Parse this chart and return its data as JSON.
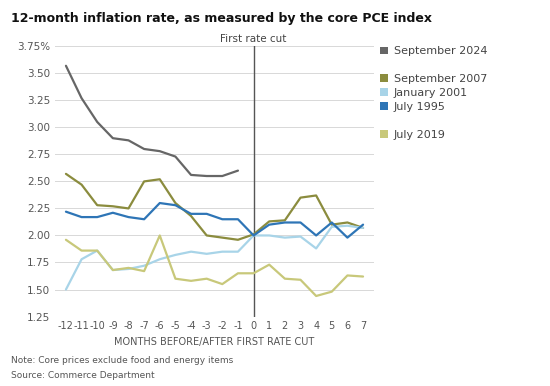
{
  "title": "12-month inflation rate, as measured by the core PCE index",
  "xlabel": "MONTHS BEFORE/AFTER FIRST RATE CUT",
  "vline_label": "First rate cut",
  "note": "Note: Core prices exclude food and energy items",
  "source": "Source: Commerce Department",
  "series": {
    "September 2024": {
      "color": "#666666",
      "x": [
        -12,
        -11,
        -10,
        -9,
        -8,
        -7,
        -6,
        -5,
        -4,
        -3,
        -2,
        -1
      ],
      "y": [
        3.57,
        3.27,
        3.05,
        2.9,
        2.88,
        2.8,
        2.78,
        2.73,
        2.56,
        2.55,
        2.55,
        2.6
      ]
    },
    "September 2007": {
      "color": "#8b8c3e",
      "x": [
        -12,
        -11,
        -10,
        -9,
        -8,
        -7,
        -6,
        -5,
        -4,
        -3,
        -2,
        -1,
        0,
        1,
        2,
        3,
        4,
        5,
        6,
        7
      ],
      "y": [
        2.57,
        2.47,
        2.28,
        2.27,
        2.25,
        2.5,
        2.52,
        2.3,
        2.18,
        2.0,
        1.98,
        1.96,
        2.01,
        2.13,
        2.14,
        2.35,
        2.37,
        2.1,
        2.12,
        2.07
      ]
    },
    "January 2001": {
      "color": "#a8d4e8",
      "x": [
        -12,
        -11,
        -10,
        -9,
        -8,
        -7,
        -6,
        -5,
        -4,
        -3,
        -2,
        -1,
        0,
        1,
        2,
        3,
        4,
        5,
        6,
        7
      ],
      "y": [
        1.5,
        1.78,
        1.86,
        1.68,
        1.69,
        1.72,
        1.78,
        1.82,
        1.85,
        1.83,
        1.85,
        1.85,
        2.0,
        2.0,
        1.98,
        1.99,
        1.88,
        2.08,
        2.09,
        2.07
      ]
    },
    "July 1995": {
      "color": "#2e75b6",
      "x": [
        -12,
        -11,
        -10,
        -9,
        -8,
        -7,
        -6,
        -5,
        -4,
        -3,
        -2,
        -1,
        0,
        1,
        2,
        3,
        4,
        5,
        6,
        7
      ],
      "y": [
        2.22,
        2.17,
        2.17,
        2.21,
        2.17,
        2.15,
        2.3,
        2.28,
        2.2,
        2.2,
        2.15,
        2.15,
        2.0,
        2.1,
        2.12,
        2.12,
        2.0,
        2.12,
        1.98,
        2.1
      ]
    },
    "July 2019": {
      "color": "#c8c87a",
      "x": [
        -12,
        -11,
        -10,
        -9,
        -8,
        -7,
        -6,
        -5,
        -4,
        -3,
        -2,
        -1,
        0,
        1,
        2,
        3,
        4,
        5,
        6,
        7
      ],
      "y": [
        1.96,
        1.86,
        1.86,
        1.68,
        1.7,
        1.67,
        2.0,
        1.6,
        1.58,
        1.6,
        1.55,
        1.65,
        1.65,
        1.73,
        1.6,
        1.59,
        1.44,
        1.48,
        1.63,
        1.62
      ]
    }
  },
  "legend_order": [
    "September 2024",
    "September 2007",
    "January 2001",
    "July 1995",
    "July 2019"
  ],
  "legend_groups": [
    [
      0
    ],
    [
      1,
      2,
      3
    ],
    [
      4
    ]
  ],
  "ylim": [
    1.25,
    3.75
  ],
  "yticks": [
    1.25,
    1.5,
    1.75,
    2.0,
    2.25,
    2.5,
    2.75,
    3.0,
    3.25,
    3.5,
    3.75
  ],
  "xticks": [
    -12,
    -11,
    -10,
    -9,
    -8,
    -7,
    -6,
    -5,
    -4,
    -3,
    -2,
    -1,
    0,
    1,
    2,
    3,
    4,
    5,
    6,
    7
  ],
  "background_color": "#ffffff",
  "grid_color": "#d8d8d8",
  "title_fontsize": 9,
  "label_fontsize": 7,
  "tick_fontsize": 7.5,
  "legend_fontsize": 8
}
